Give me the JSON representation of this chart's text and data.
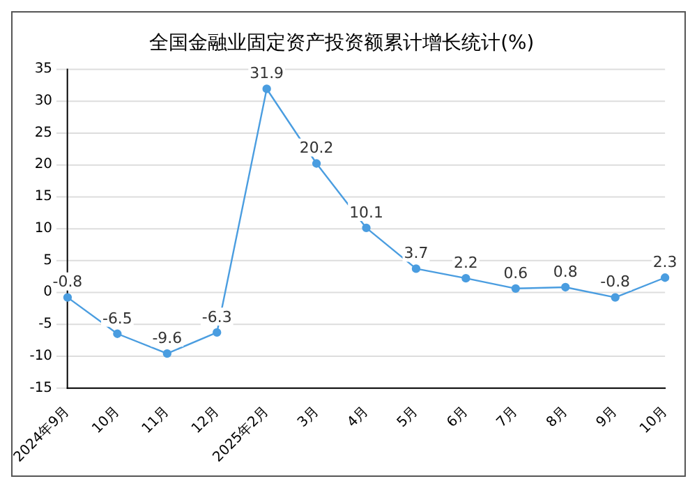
{
  "chart_data": {
    "type": "line",
    "title": "全国金融业固定资产投资额累计增长统计(%)",
    "categories": [
      "2024年9月",
      "10月",
      "11月",
      "12月",
      "2025年2月",
      "3月",
      "4月",
      "5月",
      "6月",
      "7月",
      "8月",
      "9月",
      "10月"
    ],
    "series": [
      {
        "color": "#4a9de0",
        "values": [
          -0.8,
          -6.5,
          -9.6,
          -6.3,
          31.9,
          20.2,
          10.1,
          3.7,
          2.2,
          0.6,
          0.8,
          -0.8,
          2.3
        ]
      }
    ],
    "ylim": [
      -15,
      35
    ],
    "yticks": [
      -15,
      -10,
      -5,
      0,
      5,
      10,
      15,
      20,
      25,
      30,
      35
    ],
    "grid": "y",
    "legend": false,
    "marker": "circle",
    "line_style": "solid",
    "data_labels": true
  }
}
